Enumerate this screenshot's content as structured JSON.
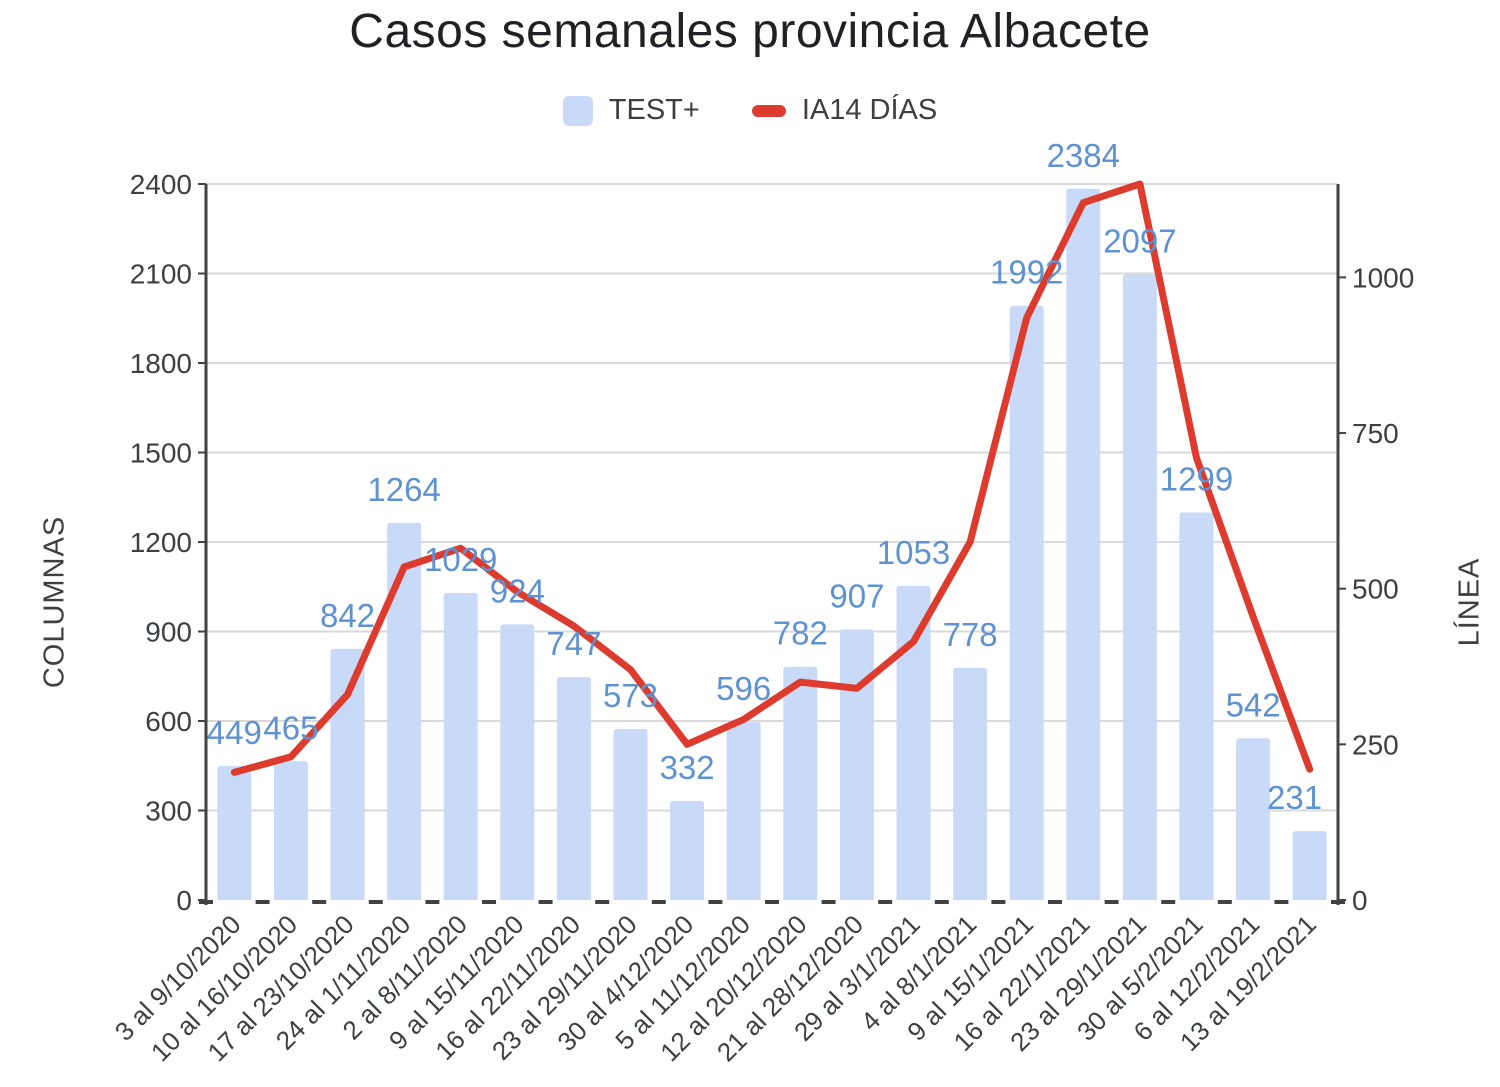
{
  "chart_data": {
    "type": "combo-bar-line",
    "title": "Casos semanales provincia Albacete",
    "categories": [
      "3 al 9/10/2020",
      "10 al 16/10/2020",
      "17 al 23/10/2020",
      "24 al 1/11/2020",
      "2 al 8/11/2020",
      "9 al 15/11/2020",
      "16 al 22/11/2020",
      "23 al 29/11/2020",
      "30 al 4/12/2020",
      "5 al 11/12/2020",
      "12 al 20/12/2020",
      "21 al 28/12/2020",
      "29 al 3/1/2021",
      "4 al 8/1/2021",
      "9 al 15/1/2021",
      "16 al 22/1/2021",
      "23 al 29/1/2021",
      "30 al 5/2/2021",
      "6 al 12/2/2021",
      "13 al 19/2/2021"
    ],
    "series": [
      {
        "name": "TEST+",
        "type": "bar",
        "axis": "left",
        "color": "#c9daf8",
        "label_color": "#5f92d1",
        "data_labels": true,
        "values": [
          449,
          465,
          842,
          1264,
          1029,
          924,
          747,
          573,
          332,
          596,
          782,
          907,
          1053,
          778,
          1992,
          2384,
          2097,
          1299,
          542,
          231
        ]
      },
      {
        "name": "IA14 DÍAS",
        "type": "line",
        "axis": "right",
        "color": "#de3b2f",
        "data_labels": false,
        "estimated": true,
        "values": [
          205,
          230,
          330,
          535,
          565,
          495,
          440,
          370,
          250,
          290,
          350,
          340,
          415,
          575,
          935,
          1120,
          1150,
          710,
          455,
          210
        ]
      }
    ],
    "left_axis": {
      "title": "COLUMNAS",
      "min": 0,
      "max": 2400,
      "ticks": [
        0,
        300,
        600,
        900,
        1200,
        1500,
        1800,
        2100,
        2400
      ]
    },
    "right_axis": {
      "title": "LÍNEA",
      "min": 0,
      "max": 1150,
      "ticks": [
        0,
        250,
        500,
        750,
        1000
      ]
    },
    "grid": "horizontal",
    "legend_position": "top",
    "colors": {
      "grid": "#d9d9d9",
      "axis_line": "#424242",
      "axis_text": "#3c4043",
      "title_text": "#202124"
    }
  }
}
